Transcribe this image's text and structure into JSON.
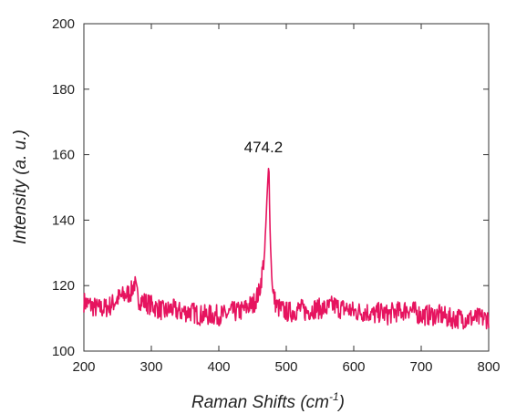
{
  "chart_data": {
    "type": "line",
    "title": "",
    "xlabel_main": "Raman Shifts (cm",
    "xlabel_sup": "-1",
    "xlabel_close": ")",
    "ylabel": "Intensity (a. u.)",
    "xlim": [
      200,
      800
    ],
    "ylim": [
      100,
      200
    ],
    "xticks": [
      200,
      300,
      400,
      500,
      600,
      700,
      800
    ],
    "yticks": [
      100,
      120,
      140,
      160,
      180,
      200
    ],
    "grid": false,
    "legend": "none",
    "annotation": {
      "text": "474.2",
      "x": 474.2,
      "y": 158
    },
    "series": [
      {
        "color": "#e6145f",
        "x": [
          200,
          210,
          220,
          230,
          240,
          250,
          260,
          270,
          275,
          280,
          290,
          300,
          310,
          320,
          330,
          340,
          350,
          360,
          370,
          380,
          390,
          400,
          410,
          420,
          430,
          440,
          445,
          450,
          455,
          460,
          465,
          468,
          470,
          472,
          474.2,
          476,
          478,
          480,
          485,
          490,
          500,
          510,
          520,
          530,
          540,
          550,
          560,
          570,
          580,
          590,
          600,
          610,
          620,
          630,
          640,
          650,
          660,
          670,
          680,
          690,
          700,
          710,
          720,
          730,
          740,
          750,
          760,
          770,
          780,
          790,
          800
        ],
        "y": [
          115,
          114,
          113,
          113,
          114,
          116,
          117,
          118,
          121,
          116,
          115,
          114,
          113,
          112,
          113,
          112,
          112,
          112,
          111,
          111,
          111,
          111,
          111,
          112,
          112,
          113,
          114,
          114,
          116,
          118,
          125,
          130,
          140,
          149,
          158,
          137,
          125,
          118,
          114,
          113,
          112,
          112,
          113,
          112,
          113,
          113,
          113,
          114,
          113,
          113,
          112,
          112,
          112,
          111,
          112,
          111,
          112,
          112,
          113,
          112,
          111,
          111,
          111,
          111,
          110,
          110,
          110,
          110,
          110,
          110,
          110
        ]
      }
    ]
  }
}
